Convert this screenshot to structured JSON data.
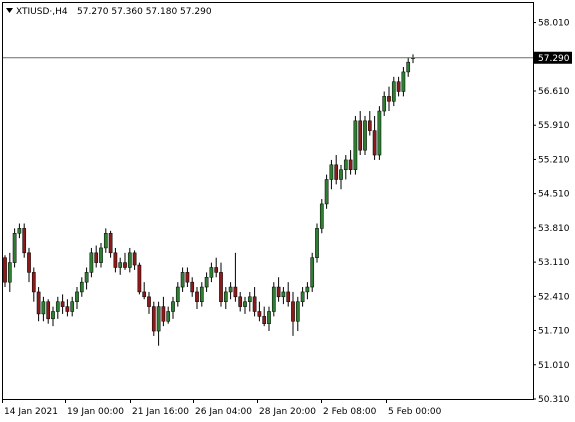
{
  "header": {
    "symbol_timeframe": "XTIUSD·,H4",
    "ohlc": "57.270 57.360 57.180 57.290"
  },
  "colors": {
    "bull": "#2e7d32",
    "bear": "#8b1a1a",
    "wick": "#000000",
    "frame": "#000000",
    "current_line": "#6b6b6b",
    "current_label_bg": "#000000"
  },
  "icons": {
    "menu": "triangle-down-icon"
  },
  "chart_data": {
    "type": "candlestick",
    "ylim": [
      50.31,
      58.41
    ],
    "yticks": [
      "58.010",
      "57.310",
      "56.610",
      "55.910",
      "55.210",
      "54.510",
      "53.810",
      "53.110",
      "52.410",
      "51.710",
      "51.010",
      "50.310"
    ],
    "xticks": [
      "14 Jan 2021",
      "19 Jan 00:00",
      "21 Jan 16:00",
      "26 Jan 04:00",
      "28 Jan 20:00",
      "2 Feb 08:00",
      "5 Feb 00:00"
    ],
    "current_price": "57.290",
    "candles": [
      [
        53.2,
        53.25,
        52.6,
        52.7
      ],
      [
        52.7,
        53.3,
        52.5,
        53.1
      ],
      [
        53.1,
        53.8,
        53.0,
        53.7
      ],
      [
        53.7,
        53.9,
        53.6,
        53.8
      ],
      [
        53.8,
        53.9,
        53.2,
        53.3
      ],
      [
        53.3,
        53.4,
        52.7,
        52.9
      ],
      [
        52.9,
        53.0,
        52.3,
        52.5
      ],
      [
        52.5,
        52.6,
        51.9,
        52.05
      ],
      [
        52.05,
        52.4,
        51.9,
        52.3
      ],
      [
        52.3,
        52.35,
        51.85,
        51.95
      ],
      [
        51.95,
        52.2,
        51.8,
        52.1
      ],
      [
        52.1,
        52.4,
        51.95,
        52.3
      ],
      [
        52.3,
        52.45,
        52.05,
        52.2
      ],
      [
        52.2,
        52.35,
        52.0,
        52.1
      ],
      [
        52.1,
        52.4,
        52.0,
        52.3
      ],
      [
        52.3,
        52.6,
        52.15,
        52.5
      ],
      [
        52.5,
        52.8,
        52.4,
        52.7
      ],
      [
        52.7,
        53.0,
        52.55,
        52.9
      ],
      [
        52.9,
        53.4,
        52.8,
        53.3
      ],
      [
        53.3,
        53.45,
        53.0,
        53.1
      ],
      [
        53.1,
        53.5,
        53.0,
        53.4
      ],
      [
        53.4,
        53.8,
        53.3,
        53.7
      ],
      [
        53.7,
        53.75,
        53.2,
        53.3
      ],
      [
        53.3,
        53.4,
        52.9,
        53.0
      ],
      [
        53.0,
        53.2,
        52.85,
        53.1
      ],
      [
        53.1,
        53.3,
        52.95,
        53.0
      ],
      [
        53.0,
        53.4,
        52.9,
        53.3
      ],
      [
        53.3,
        53.35,
        52.95,
        53.05
      ],
      [
        53.05,
        53.1,
        52.45,
        52.5
      ],
      [
        52.5,
        52.7,
        52.35,
        52.4
      ],
      [
        52.4,
        52.5,
        52.05,
        52.2
      ],
      [
        52.2,
        52.3,
        51.6,
        51.7
      ],
      [
        51.7,
        52.3,
        51.4,
        52.2
      ],
      [
        52.2,
        52.4,
        51.8,
        51.9
      ],
      [
        51.9,
        52.2,
        51.85,
        52.1
      ],
      [
        52.1,
        52.4,
        51.95,
        52.3
      ],
      [
        52.3,
        52.7,
        52.2,
        52.6
      ],
      [
        52.6,
        53.0,
        52.5,
        52.9
      ],
      [
        52.9,
        53.0,
        52.6,
        52.7
      ],
      [
        52.7,
        52.8,
        52.4,
        52.5
      ],
      [
        52.5,
        52.6,
        52.15,
        52.3
      ],
      [
        52.3,
        52.7,
        52.2,
        52.6
      ],
      [
        52.6,
        52.9,
        52.5,
        52.8
      ],
      [
        52.8,
        53.1,
        52.7,
        53.0
      ],
      [
        53.0,
        53.2,
        52.8,
        52.9
      ],
      [
        52.9,
        53.1,
        52.2,
        52.3
      ],
      [
        52.3,
        52.6,
        52.15,
        52.5
      ],
      [
        52.5,
        52.7,
        52.35,
        52.6
      ],
      [
        52.6,
        53.3,
        52.3,
        52.4
      ],
      [
        52.4,
        52.5,
        52.1,
        52.2
      ],
      [
        52.2,
        52.4,
        52.05,
        52.3
      ],
      [
        52.3,
        52.5,
        52.1,
        52.4
      ],
      [
        52.4,
        52.6,
        52.0,
        52.1
      ],
      [
        52.1,
        52.3,
        51.9,
        52.0
      ],
      [
        52.0,
        52.2,
        51.8,
        51.85
      ],
      [
        51.85,
        52.2,
        51.7,
        52.1
      ],
      [
        52.1,
        52.7,
        52.0,
        52.6
      ],
      [
        52.6,
        52.8,
        52.3,
        52.4
      ],
      [
        52.4,
        52.6,
        52.25,
        52.5
      ],
      [
        52.5,
        52.7,
        52.2,
        52.3
      ],
      [
        52.3,
        52.5,
        51.6,
        51.9
      ],
      [
        51.9,
        52.4,
        51.7,
        52.3
      ],
      [
        52.3,
        52.6,
        52.2,
        52.5
      ],
      [
        52.5,
        52.7,
        52.35,
        52.6
      ],
      [
        52.6,
        53.3,
        52.5,
        53.2
      ],
      [
        53.2,
        53.9,
        53.1,
        53.8
      ],
      [
        53.8,
        54.4,
        53.7,
        54.3
      ],
      [
        54.3,
        54.9,
        54.2,
        54.8
      ],
      [
        54.8,
        55.2,
        54.6,
        55.1
      ],
      [
        55.1,
        55.3,
        54.7,
        54.8
      ],
      [
        54.8,
        55.1,
        54.6,
        55.0
      ],
      [
        55.0,
        55.3,
        54.8,
        55.2
      ],
      [
        55.2,
        55.4,
        54.9,
        55.0
      ],
      [
        55.0,
        56.1,
        54.9,
        56.0
      ],
      [
        56.0,
        56.2,
        55.3,
        55.4
      ],
      [
        55.4,
        56.1,
        55.3,
        56.0
      ],
      [
        56.0,
        56.2,
        55.7,
        55.8
      ],
      [
        55.8,
        56.1,
        55.2,
        55.3
      ],
      [
        55.3,
        56.3,
        55.2,
        56.2
      ],
      [
        56.2,
        56.6,
        56.1,
        56.5
      ],
      [
        56.5,
        56.7,
        56.2,
        56.4
      ],
      [
        56.4,
        56.9,
        56.3,
        56.8
      ],
      [
        56.8,
        56.9,
        56.5,
        56.6
      ],
      [
        56.6,
        57.1,
        56.5,
        57.0
      ],
      [
        57.0,
        57.3,
        56.9,
        57.2
      ],
      [
        57.27,
        57.36,
        57.18,
        57.29
      ]
    ]
  }
}
